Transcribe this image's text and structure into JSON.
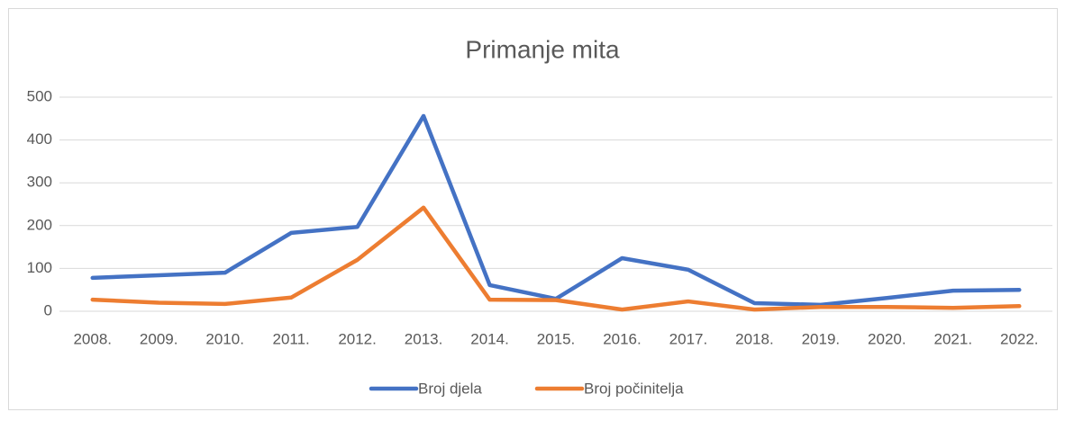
{
  "chart_data": {
    "type": "line",
    "title": "Primanje mita",
    "categories": [
      "2008.",
      "2009.",
      "2010.",
      "2011.",
      "2012.",
      "2013.",
      "2014.",
      "2015.",
      "2016.",
      "2017.",
      "2018.",
      "2019.",
      "2020.",
      "2021.",
      "2022."
    ],
    "series": [
      {
        "name": "Broj djela",
        "color": "#4472c4",
        "values": [
          78,
          84,
          90,
          183,
          197,
          456,
          61,
          29,
          124,
          97,
          19,
          15,
          31,
          48,
          50
        ]
      },
      {
        "name": "Broj počinitelja",
        "color": "#ed7d31",
        "values": [
          27,
          20,
          17,
          32,
          120,
          242,
          27,
          26,
          4,
          23,
          4,
          10,
          10,
          8,
          12
        ]
      }
    ],
    "ylim": [
      0,
      500
    ],
    "yticks": [
      0,
      100,
      200,
      300,
      400,
      500
    ],
    "grid": true,
    "legend": "bottom"
  }
}
